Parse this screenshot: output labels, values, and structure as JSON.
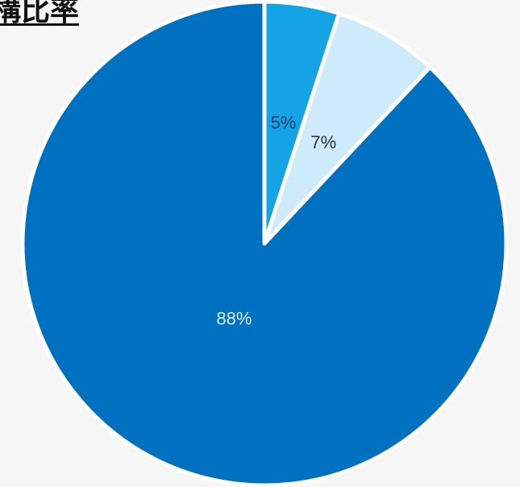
{
  "chart_data": {
    "type": "pie",
    "title": "構比率",
    "slices": [
      {
        "label": "5%",
        "value": 5,
        "color": "#14a4e6",
        "label_color": "#0d3f6e"
      },
      {
        "label": "7%",
        "value": 7,
        "color": "#cdebfa",
        "label_color": "#333333"
      },
      {
        "label": "88%",
        "value": 88,
        "color": "#0070c0",
        "label_color": "#d8ecfa"
      }
    ],
    "start_angle_deg": 0,
    "direction": "clockwise"
  }
}
